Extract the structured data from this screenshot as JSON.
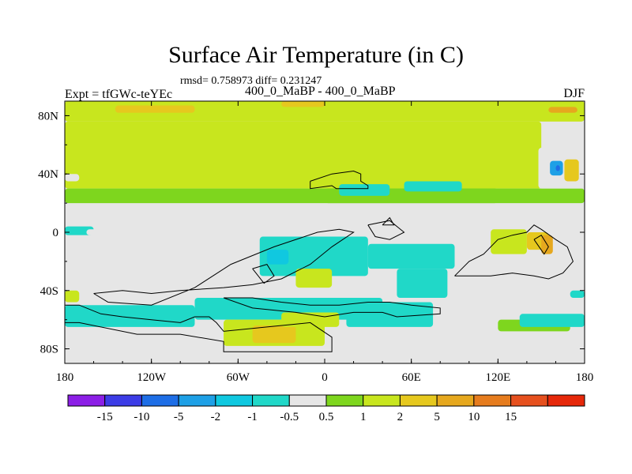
{
  "title": "Surface Air Temperature (in C)",
  "stats": "rmsd= 0.758973 diff= 0.231247",
  "experiment": "Expt = tfGWc-teYEc",
  "subtitle": "400_0_MaBP - 400_0_MaBP",
  "season": "DJF",
  "chart_data": {
    "type": "heatmap",
    "title": "Surface Air Temperature (in C)",
    "x_ticks": [
      {
        "value": -180,
        "label": "180"
      },
      {
        "value": -120,
        "label": "120W"
      },
      {
        "value": -60,
        "label": "60W"
      },
      {
        "value": 0,
        "label": "0"
      },
      {
        "value": 60,
        "label": "60E"
      },
      {
        "value": 120,
        "label": "120E"
      },
      {
        "value": 180,
        "label": "180"
      }
    ],
    "y_ticks": [
      {
        "value": 80,
        "label": "80N"
      },
      {
        "value": 40,
        "label": "40N"
      },
      {
        "value": 0,
        "label": "0"
      },
      {
        "value": -40,
        "label": "40S"
      },
      {
        "value": -80,
        "label": "80S"
      }
    ],
    "xlim": [
      -180,
      180
    ],
    "ylim": [
      -90,
      90
    ],
    "colorbar": {
      "colors": [
        "#8c1fe6",
        "#3c3ce6",
        "#1e6ee6",
        "#1ea0e6",
        "#10c8e0",
        "#20d8c8",
        "#e6e6e6",
        "#7ed61e",
        "#c8e61e",
        "#e6c81e",
        "#e6a81e",
        "#e67c1e",
        "#e6501e",
        "#e6280a"
      ],
      "labels": [
        "-15",
        "-10",
        "-5",
        "-2",
        "-1",
        "-0.5",
        "0.5",
        "1",
        "2",
        "5",
        "10",
        "15"
      ]
    },
    "regions": [
      {
        "x": [
          -180,
          180
        ],
        "y": [
          76,
          90
        ],
        "bin": 8
      },
      {
        "x": [
          -180,
          150
        ],
        "y": [
          30,
          76
        ],
        "bin": 8
      },
      {
        "x": [
          -180,
          -170
        ],
        "y": [
          35,
          40
        ],
        "bin": 6
      },
      {
        "x": [
          -180,
          120
        ],
        "y": [
          20,
          30
        ],
        "bin": 7
      },
      {
        "x": [
          0,
          180
        ],
        "y": [
          20,
          30
        ],
        "bin": 7
      },
      {
        "x": [
          -145,
          -90
        ],
        "y": [
          82,
          87
        ],
        "bin": 9
      },
      {
        "x": [
          -30,
          0
        ],
        "y": [
          86,
          90
        ],
        "bin": 9
      },
      {
        "x": [
          155,
          175
        ],
        "y": [
          82,
          86
        ],
        "bin": 10
      },
      {
        "x": [
          148,
          180
        ],
        "y": [
          30,
          58
        ],
        "bin": 6
      },
      {
        "x": [
          156,
          165
        ],
        "y": [
          39,
          49
        ],
        "bin": 3
      },
      {
        "x": [
          160,
          163
        ],
        "y": [
          42,
          46
        ],
        "bin": 2
      },
      {
        "x": [
          166,
          176
        ],
        "y": [
          35,
          50
        ],
        "bin": 9
      },
      {
        "x": [
          10,
          45
        ],
        "y": [
          25,
          33
        ],
        "bin": 5
      },
      {
        "x": [
          55,
          95
        ],
        "y": [
          28,
          35
        ],
        "bin": 5
      },
      {
        "x": [
          -180,
          -160
        ],
        "y": [
          -2,
          4
        ],
        "bin": 5
      },
      {
        "x": [
          -165,
          -130
        ],
        "y": [
          -2,
          2
        ],
        "bin": 6
      },
      {
        "x": [
          -180,
          180
        ],
        "y": [
          -3,
          -2
        ],
        "bin": 6
      },
      {
        "x": [
          -45,
          30
        ],
        "y": [
          -30,
          -3
        ],
        "bin": 5
      },
      {
        "x": [
          -40,
          -25
        ],
        "y": [
          -22,
          -12
        ],
        "bin": 4
      },
      {
        "x": [
          30,
          90
        ],
        "y": [
          -25,
          -8
        ],
        "bin": 5
      },
      {
        "x": [
          50,
          85
        ],
        "y": [
          -45,
          -25
        ],
        "bin": 5
      },
      {
        "x": [
          -20,
          5
        ],
        "y": [
          -38,
          -25
        ],
        "bin": 8
      },
      {
        "x": [
          115,
          140
        ],
        "y": [
          -15,
          2
        ],
        "bin": 8
      },
      {
        "x": [
          140,
          155
        ],
        "y": [
          -12,
          0
        ],
        "bin": 9
      },
      {
        "x": [
          150,
          158
        ],
        "y": [
          -15,
          -2
        ],
        "bin": 10
      },
      {
        "x": [
          -180,
          -90
        ],
        "y": [
          -65,
          -50
        ],
        "bin": 5
      },
      {
        "x": [
          -90,
          40
        ],
        "y": [
          -60,
          -45
        ],
        "bin": 5
      },
      {
        "x": [
          15,
          75
        ],
        "y": [
          -65,
          -48
        ],
        "bin": 5
      },
      {
        "x": [
          -180,
          -170
        ],
        "y": [
          -48,
          -40
        ],
        "bin": 8
      },
      {
        "x": [
          -70,
          0
        ],
        "y": [
          -78,
          -60
        ],
        "bin": 8
      },
      {
        "x": [
          -50,
          -20
        ],
        "y": [
          -76,
          -64
        ],
        "bin": 9
      },
      {
        "x": [
          -30,
          10
        ],
        "y": [
          -65,
          -55
        ],
        "bin": 8
      },
      {
        "x": [
          120,
          170
        ],
        "y": [
          -68,
          -60
        ],
        "bin": 7
      },
      {
        "x": [
          135,
          180
        ],
        "y": [
          -65,
          -56
        ],
        "bin": 5
      },
      {
        "x": [
          170,
          180
        ],
        "y": [
          -45,
          -40
        ],
        "bin": 5
      }
    ],
    "coastlines": [
      {
        "lon": [
          -10,
          5,
          20,
          25,
          25,
          30,
          30,
          15,
          8,
          5,
          -10,
          -10
        ],
        "lat": [
          35,
          40,
          42,
          40,
          35,
          32,
          30,
          30,
          30,
          32,
          30,
          35
        ]
      },
      {
        "lon": [
          30,
          45,
          55,
          45,
          35,
          30
        ],
        "lat": [
          5,
          8,
          0,
          -5,
          -3,
          5
        ]
      },
      {
        "lon": [
          -160,
          -140,
          -120,
          -100,
          -70,
          -50,
          -30,
          -10,
          5,
          20,
          10,
          -5,
          -35,
          -65,
          -90,
          -120,
          -150,
          -160
        ],
        "lat": [
          -42,
          -40,
          -42,
          -40,
          -38,
          -36,
          -32,
          -22,
          -10,
          0,
          2,
          0,
          -10,
          -22,
          -38,
          -50,
          -48,
          -42
        ]
      },
      {
        "lon": [
          -50,
          -40,
          -35,
          -42,
          -50
        ],
        "lat": [
          -25,
          -22,
          -30,
          -35,
          -25
        ]
      },
      {
        "lon": [
          -180,
          -170,
          -155,
          -140,
          -120,
          -100,
          -90,
          -80,
          -75,
          -70,
          -40,
          -10,
          5,
          5,
          -40,
          -70,
          -70,
          -100,
          -130,
          -170,
          -180
        ],
        "lat": [
          -50,
          -50,
          -56,
          -58,
          -60,
          -62,
          -58,
          -58,
          -62,
          -68,
          -65,
          -62,
          -72,
          -82,
          -82,
          -82,
          -75,
          -70,
          -70,
          -62,
          -62
        ]
      },
      {
        "lon": [
          -70,
          -50,
          -20,
          0,
          20,
          40,
          50,
          80,
          80,
          60,
          45,
          30,
          10,
          -10,
          -30,
          -50,
          -70
        ],
        "lat": [
          -45,
          -52,
          -55,
          -58,
          -55,
          -55,
          -58,
          -56,
          -52,
          -50,
          -48,
          -48,
          -50,
          -50,
          -48,
          -45,
          -45
        ]
      },
      {
        "lon": [
          90,
          100,
          110,
          120,
          130,
          140,
          145,
          150,
          160,
          168,
          172,
          165,
          155,
          145,
          130,
          115,
          100,
          90
        ],
        "lat": [
          -30,
          -20,
          -15,
          -5,
          -2,
          0,
          5,
          2,
          -5,
          -10,
          -20,
          -28,
          -32,
          -30,
          -28,
          -30,
          -30,
          -30
        ]
      },
      {
        "lon": [
          145,
          150,
          155,
          152,
          145
        ],
        "lat": [
          -5,
          -2,
          -10,
          -15,
          -5
        ]
      },
      {
        "lon": [
          40,
          45,
          48,
          40
        ],
        "lat": [
          5,
          10,
          5,
          5
        ]
      }
    ]
  }
}
